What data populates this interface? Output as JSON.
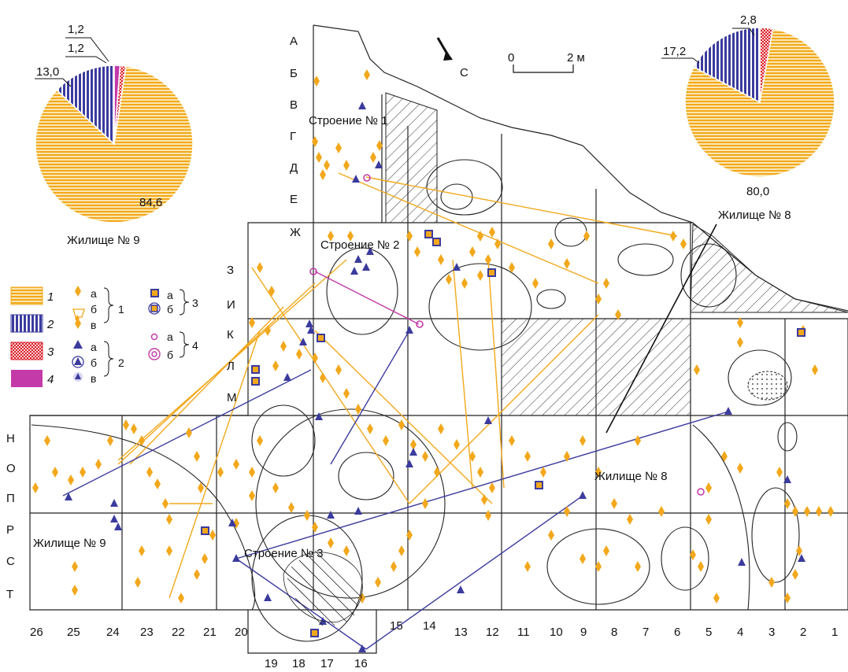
{
  "colors": {
    "c1": "#f2a81c",
    "c2": "#3b3b9e",
    "c3": "#d8212d",
    "c4": "#c33aa8",
    "hatch": "#333333"
  },
  "pie_left": {
    "label": "Жилище № 9",
    "values": [
      "84,6",
      "13,0",
      "1,2",
      "1,2"
    ]
  },
  "pie_right": {
    "label": "Жилище № 8",
    "values": [
      "80,0",
      "17,2",
      "2,8"
    ]
  },
  "chart_data": [
    {
      "type": "pie",
      "title": "Жилище № 9",
      "categories": [
        "1",
        "2",
        "3",
        "4"
      ],
      "values": [
        84.6,
        13.0,
        1.2,
        1.2
      ]
    },
    {
      "type": "pie",
      "title": "Жилище № 8",
      "categories": [
        "1",
        "2",
        "3"
      ],
      "values": [
        80.0,
        17.2,
        2.8
      ]
    }
  ],
  "map": {
    "rows": [
      "А",
      "Б",
      "В",
      "Г",
      "Д",
      "Е",
      "Ж",
      "З",
      "И",
      "К",
      "Л",
      "М",
      "Н",
      "О",
      "П",
      "Р",
      "С",
      "Т"
    ],
    "cols_bottom": [
      "26",
      "25",
      "24",
      "23",
      "22",
      "21",
      "20",
      "15",
      "14",
      "13",
      "12",
      "11",
      "10",
      "9",
      "8",
      "7",
      "6",
      "5",
      "4",
      "3",
      "2",
      "1"
    ],
    "cols_extra": [
      "19",
      "18",
      "17",
      "16"
    ],
    "labels": {
      "building1": "Строение № 1",
      "building2": "Строение № 2",
      "building3": "Строение № 3",
      "dwelling8": "Жилище № 8",
      "dwelling8b": "Жилище № 8",
      "dwelling9": "Жилище № 9"
    },
    "north_label": "С",
    "scale": {
      "zero": "0",
      "max": "2 м"
    }
  },
  "legend": {
    "swatches": [
      "1",
      "2",
      "3",
      "4"
    ],
    "group1": {
      "items": [
        "а",
        "б",
        "в"
      ],
      "num": "1"
    },
    "group2": {
      "items": [
        "а",
        "б",
        "в"
      ],
      "num": "2"
    },
    "group3": {
      "items": [
        "а",
        "б"
      ],
      "num": "3"
    },
    "group4": {
      "items": [
        "а",
        "б"
      ],
      "num": "4"
    }
  }
}
